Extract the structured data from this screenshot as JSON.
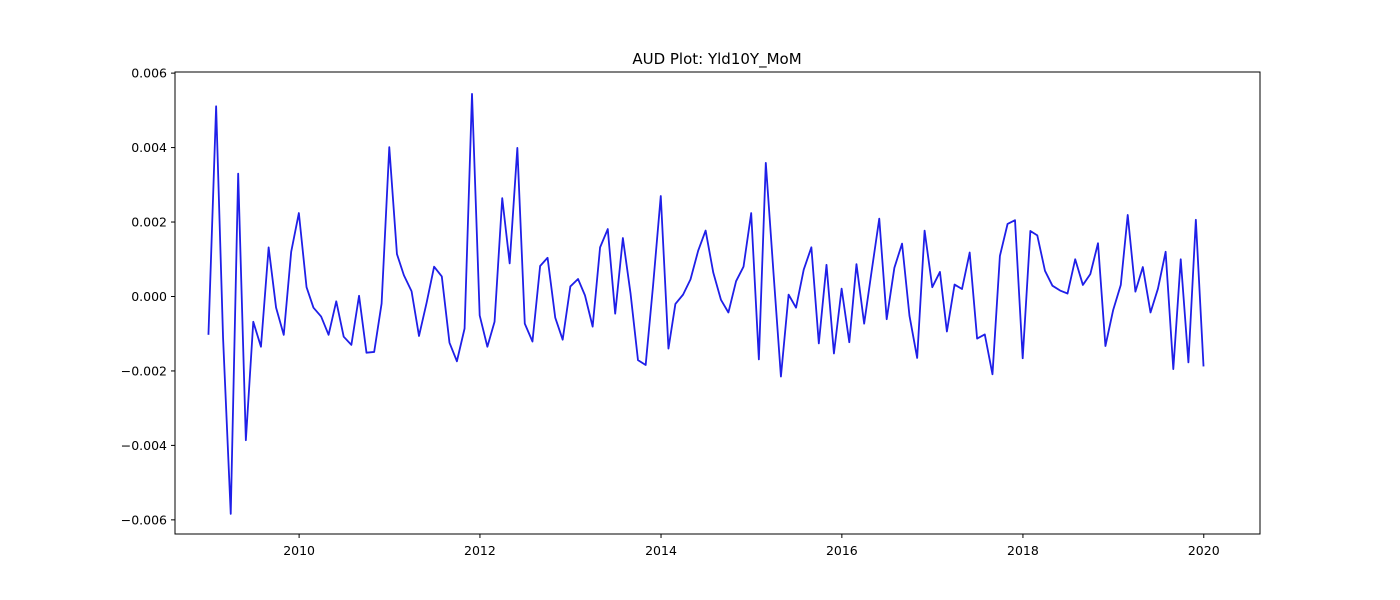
{
  "chart_data": {
    "type": "line",
    "title": "AUD Plot: Yld10Y_MoM",
    "xlabel": "",
    "ylabel": "",
    "x_axis": {
      "kind": "date",
      "range": [
        "2008-08-18",
        "2020-08-15"
      ],
      "ticks": [
        "2010",
        "2012",
        "2014",
        "2016",
        "2018",
        "2020"
      ]
    },
    "y_axis": {
      "range": [
        -0.00638,
        0.00603
      ],
      "ticks": [
        "−0.006",
        "−0.004",
        "−0.002",
        "0.000",
        "0.002",
        "0.004",
        "0.006"
      ]
    },
    "grid": false,
    "legend": null,
    "series": [
      {
        "color": "#1f1fe8",
        "x": [
          "2008-12-31",
          "2009-01-31",
          "2009-02-28",
          "2009-03-31",
          "2009-04-30",
          "2009-05-31",
          "2009-06-30",
          "2009-07-31",
          "2009-08-31",
          "2009-09-30",
          "2009-10-31",
          "2009-11-30",
          "2009-12-31",
          "2010-01-31",
          "2010-02-28",
          "2010-03-31",
          "2010-04-30",
          "2010-05-31",
          "2010-06-30",
          "2010-07-31",
          "2010-08-31",
          "2010-09-30",
          "2010-10-31",
          "2010-11-30",
          "2010-12-31",
          "2011-01-31",
          "2011-02-28",
          "2011-03-31",
          "2011-04-30",
          "2011-05-31",
          "2011-06-30",
          "2011-07-31",
          "2011-08-31",
          "2011-09-30",
          "2011-10-31",
          "2011-11-30",
          "2011-12-31",
          "2012-01-31",
          "2012-02-29",
          "2012-03-31",
          "2012-04-30",
          "2012-05-31",
          "2012-06-30",
          "2012-07-31",
          "2012-08-31",
          "2012-09-30",
          "2012-10-31",
          "2012-11-30",
          "2012-12-31",
          "2013-01-31",
          "2013-02-28",
          "2013-03-31",
          "2013-04-30",
          "2013-05-31",
          "2013-06-30",
          "2013-07-31",
          "2013-08-31",
          "2013-09-30",
          "2013-10-31",
          "2013-11-30",
          "2013-12-31",
          "2014-01-31",
          "2014-02-28",
          "2014-03-31",
          "2014-04-30",
          "2014-05-31",
          "2014-06-30",
          "2014-07-31",
          "2014-08-31",
          "2014-09-30",
          "2014-10-31",
          "2014-11-30",
          "2014-12-31",
          "2015-01-31",
          "2015-02-28",
          "2015-03-31",
          "2015-04-30",
          "2015-05-31",
          "2015-06-30",
          "2015-07-31",
          "2015-08-31",
          "2015-09-30",
          "2015-10-31",
          "2015-11-30",
          "2015-12-31",
          "2016-01-31",
          "2016-02-29",
          "2016-03-31",
          "2016-04-30",
          "2016-05-31",
          "2016-06-30",
          "2016-07-31",
          "2016-08-31",
          "2016-09-30",
          "2016-10-31",
          "2016-11-30",
          "2016-12-31",
          "2017-01-31",
          "2017-02-28",
          "2017-03-31",
          "2017-04-30",
          "2017-05-31",
          "2017-06-30",
          "2017-07-31",
          "2017-08-31",
          "2017-09-30",
          "2017-10-31",
          "2017-11-30",
          "2017-12-31",
          "2018-01-31",
          "2018-02-28",
          "2018-03-31",
          "2018-04-30",
          "2018-05-31",
          "2018-06-30",
          "2018-07-31",
          "2018-08-31",
          "2018-09-30",
          "2018-10-31",
          "2018-11-30",
          "2018-12-31",
          "2019-01-31",
          "2019-02-28",
          "2019-03-31",
          "2019-04-30",
          "2019-05-31",
          "2019-06-30",
          "2019-07-31",
          "2019-08-31",
          "2019-09-30",
          "2019-10-31",
          "2019-11-30",
          "2019-12-31"
        ],
        "y": [
          -0.00103,
          0.00511,
          -0.00111,
          -0.00584,
          0.0033,
          -0.00386,
          -0.00068,
          -0.00135,
          0.00132,
          -0.0003,
          -0.00103,
          0.0012,
          0.00224,
          0.00025,
          -0.0003,
          -0.00054,
          -0.00103,
          -0.00013,
          -0.00108,
          -0.0013,
          2e-05,
          -0.00151,
          -0.00149,
          -0.00019,
          0.00401,
          0.00114,
          0.00057,
          0.00014,
          -0.00106,
          -0.00016,
          0.0008,
          0.00054,
          -0.00124,
          -0.00174,
          -0.00086,
          0.00544,
          -0.00051,
          -0.00135,
          -0.00068,
          0.00264,
          0.00089,
          0.00399,
          -0.00073,
          -0.00121,
          0.00082,
          0.00104,
          -0.00057,
          -0.00116,
          0.00027,
          0.00047,
          3e-05,
          -0.00081,
          0.00132,
          0.00181,
          -0.00046,
          0.00157,
          8e-05,
          -0.00171,
          -0.00184,
          0.0003,
          0.0027,
          -0.0014,
          -0.0002,
          5e-05,
          0.00046,
          0.00123,
          0.00177,
          0.00064,
          -9e-05,
          -0.00043,
          0.00041,
          0.0008,
          0.00224,
          -0.00169,
          0.00359,
          0.00064,
          -0.00215,
          5e-05,
          -0.0003,
          0.00072,
          0.00132,
          -0.00126,
          0.00085,
          -0.00153,
          0.00021,
          -0.00123,
          0.00087,
          -0.00073,
          0.00067,
          0.00209,
          -0.00061,
          0.00077,
          0.00142,
          -0.00052,
          -0.00165,
          0.00177,
          0.00025,
          0.00066,
          -0.00094,
          0.00032,
          0.0002,
          0.00118,
          -0.00113,
          -0.00102,
          -0.00209,
          0.00109,
          0.00195,
          0.00205,
          -0.00166,
          0.00176,
          0.00164,
          0.00069,
          0.00029,
          0.00016,
          8e-05,
          0.001,
          0.00031,
          0.0006,
          0.00143,
          -0.00133,
          -0.00037,
          0.00031,
          0.00219,
          0.00013,
          0.00079,
          -0.00043,
          0.00021,
          0.0012,
          -0.00195,
          0.001,
          -0.00177,
          0.00206,
          -0.00188
        ]
      }
    ]
  }
}
